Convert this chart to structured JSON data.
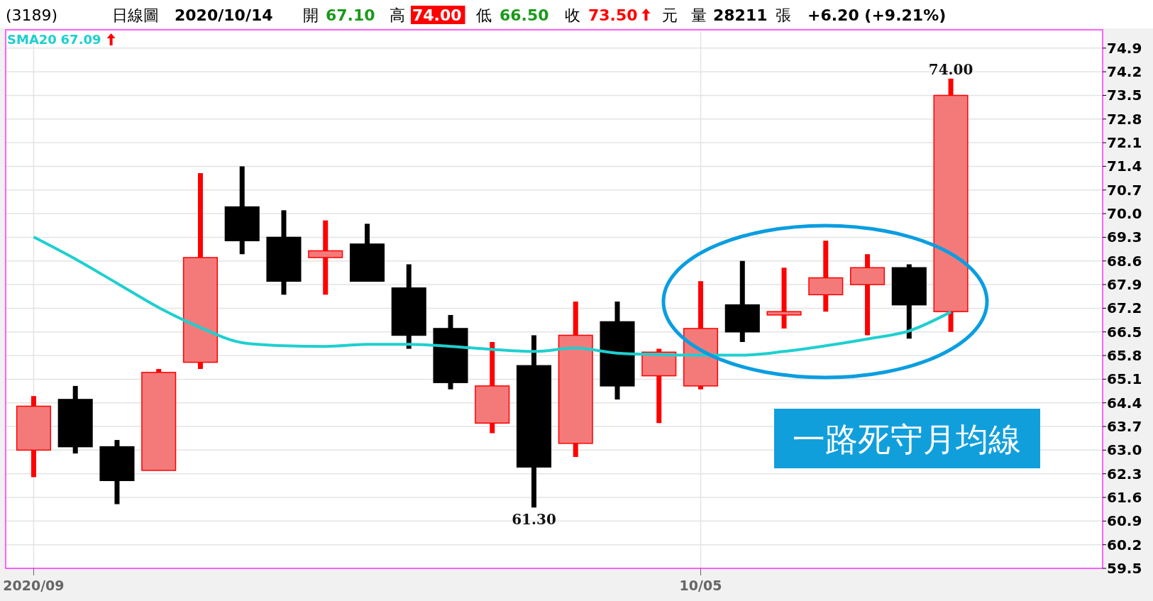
{
  "chart_data": {
    "type": "candlestick",
    "categories": [
      "2020/09",
      null,
      null,
      null,
      null,
      null,
      null,
      null,
      null,
      null,
      null,
      null,
      null,
      null,
      null,
      null,
      "10/05",
      null,
      null,
      null,
      null,
      null,
      null
    ],
    "ohlc": [
      [
        63.0,
        64.6,
        62.2,
        64.3
      ],
      [
        64.5,
        64.9,
        62.9,
        63.1
      ],
      [
        63.1,
        63.3,
        61.4,
        62.1
      ],
      [
        62.4,
        65.4,
        62.4,
        65.3
      ],
      [
        65.6,
        71.2,
        65.4,
        68.7
      ],
      [
        70.2,
        71.4,
        68.8,
        69.2
      ],
      [
        69.3,
        70.1,
        67.6,
        68.0
      ],
      [
        68.7,
        69.8,
        67.6,
        68.9
      ],
      [
        69.1,
        69.7,
        68.0,
        68.0
      ],
      [
        67.8,
        68.5,
        66.0,
        66.4
      ],
      [
        66.6,
        67.0,
        64.8,
        65.0
      ],
      [
        63.8,
        66.2,
        63.5,
        64.9
      ],
      [
        65.5,
        66.4,
        61.3,
        62.5
      ],
      [
        63.2,
        67.4,
        62.8,
        66.4
      ],
      [
        66.8,
        67.4,
        64.5,
        64.9
      ],
      [
        65.2,
        66.0,
        63.8,
        65.9
      ],
      [
        64.9,
        68.0,
        64.8,
        66.6
      ],
      [
        67.3,
        68.6,
        66.2,
        66.5
      ],
      [
        67.0,
        68.4,
        66.6,
        67.1
      ],
      [
        67.6,
        69.2,
        67.1,
        68.1
      ],
      [
        67.9,
        68.8,
        66.4,
        68.4
      ],
      [
        68.4,
        68.5,
        66.3,
        67.3
      ],
      [
        67.1,
        74.0,
        66.5,
        73.5
      ]
    ],
    "series": [
      {
        "name": "SMA20",
        "type": "line",
        "color": "#1fcfcf",
        "values": [
          69.31,
          68.66,
          67.94,
          67.22,
          66.63,
          66.18,
          66.09,
          66.07,
          66.13,
          66.13,
          66.07,
          65.98,
          65.92,
          66.02,
          65.87,
          65.83,
          65.81,
          65.81,
          65.92,
          66.09,
          66.29,
          66.53,
          67.09
        ]
      }
    ],
    "ylim": [
      59.5,
      75.4
    ],
    "yticks": [
      59.5,
      60.2,
      60.9,
      61.6,
      62.3,
      {
        "value": 63,
        "label": "63.0"
      },
      63.7,
      64.4,
      65.1,
      65.8,
      66.5,
      67.2,
      67.9,
      68.6,
      69.3,
      {
        "value": 70,
        "label": "70.0"
      },
      70.7,
      71.4,
      72.1,
      72.8,
      73.5,
      74.2,
      74.9
    ],
    "grid": true,
    "annotations": [
      "(3189)",
      "日線圖",
      "2020/10/14",
      "開",
      "67.10",
      "高",
      "74.00",
      "低",
      "66.50",
      "收",
      "73.50",
      "元",
      "量",
      "28211",
      "張",
      "+6.20 (+9.21%)",
      "67.09",
      "一路死守月均線",
      {
        "text": "74.00",
        "y": 74.0
      },
      {
        "text": "61.30",
        "y": 61.3
      }
    ]
  }
}
